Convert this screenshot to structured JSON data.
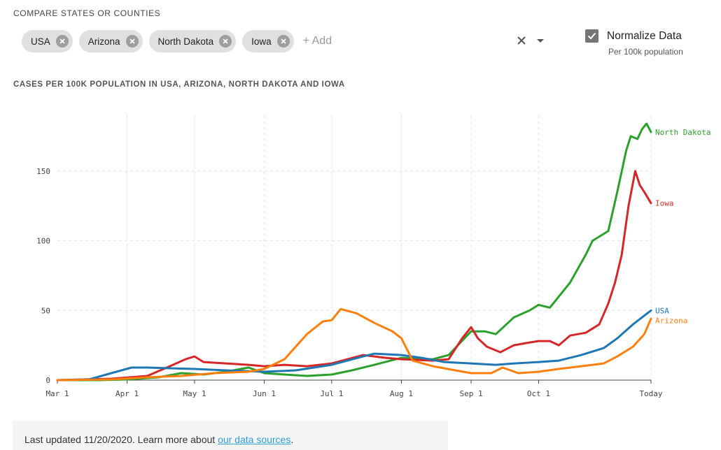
{
  "compare": {
    "label": "COMPARE STATES OR COUNTIES",
    "chips": [
      {
        "label": "USA"
      },
      {
        "label": "Arizona"
      },
      {
        "label": "North Dakota"
      },
      {
        "label": "Iowa"
      }
    ],
    "add_placeholder": "+ Add"
  },
  "normalize": {
    "label": "Normalize Data",
    "sublabel": "Per 100k population",
    "checked": true
  },
  "chart_data": {
    "type": "line",
    "title": "CASES PER 100K POPULATION IN USA, ARIZONA, NORTH DAKOTA AND IOWA",
    "xlabel": "",
    "ylabel": "",
    "x_range": [
      "2020-03-01",
      "2020-11-20"
    ],
    "ylim": [
      0,
      190
    ],
    "y_ticks": [
      0,
      50,
      100,
      150
    ],
    "x_ticks": [
      {
        "label": "Mar 1",
        "date": "2020-03-01"
      },
      {
        "label": "Apr 1",
        "date": "2020-04-01"
      },
      {
        "label": "May 1",
        "date": "2020-05-01"
      },
      {
        "label": "Jun 1",
        "date": "2020-06-01"
      },
      {
        "label": "Jul 1",
        "date": "2020-07-01"
      },
      {
        "label": "Aug 1",
        "date": "2020-08-01"
      },
      {
        "label": "Sep 1",
        "date": "2020-09-01"
      },
      {
        "label": "Oct 1",
        "date": "2020-10-01"
      },
      {
        "label": "Today",
        "date": "2020-11-20"
      }
    ],
    "grid": true,
    "series": [
      {
        "name": "North Dakota",
        "color": "#2ca02c",
        "points": [
          [
            "2020-03-01",
            0
          ],
          [
            "2020-03-20",
            0
          ],
          [
            "2020-04-01",
            0.5
          ],
          [
            "2020-04-15",
            2
          ],
          [
            "2020-04-25",
            5
          ],
          [
            "2020-05-05",
            4
          ],
          [
            "2020-05-15",
            6
          ],
          [
            "2020-05-25",
            9
          ],
          [
            "2020-06-01",
            5
          ],
          [
            "2020-06-10",
            4
          ],
          [
            "2020-06-20",
            3
          ],
          [
            "2020-07-01",
            4
          ],
          [
            "2020-07-10",
            7
          ],
          [
            "2020-07-20",
            11
          ],
          [
            "2020-08-01",
            16
          ],
          [
            "2020-08-15",
            15
          ],
          [
            "2020-08-22",
            18
          ],
          [
            "2020-09-01",
            35
          ],
          [
            "2020-09-07",
            35
          ],
          [
            "2020-09-12",
            33
          ],
          [
            "2020-09-20",
            45
          ],
          [
            "2020-09-27",
            50
          ],
          [
            "2020-10-01",
            54
          ],
          [
            "2020-10-06",
            52
          ],
          [
            "2020-10-15",
            70
          ],
          [
            "2020-10-22",
            90
          ],
          [
            "2020-10-25",
            100
          ],
          [
            "2020-11-01",
            107
          ],
          [
            "2020-11-05",
            135
          ],
          [
            "2020-11-09",
            165
          ],
          [
            "2020-11-11",
            175
          ],
          [
            "2020-11-14",
            173
          ],
          [
            "2020-11-16",
            180
          ],
          [
            "2020-11-18",
            184
          ],
          [
            "2020-11-20",
            178
          ]
        ]
      },
      {
        "name": "Iowa",
        "color": "#d62728",
        "points": [
          [
            "2020-03-01",
            0
          ],
          [
            "2020-03-25",
            1
          ],
          [
            "2020-04-10",
            3
          ],
          [
            "2020-04-20",
            10
          ],
          [
            "2020-04-27",
            15
          ],
          [
            "2020-05-01",
            17
          ],
          [
            "2020-05-05",
            13
          ],
          [
            "2020-05-15",
            12
          ],
          [
            "2020-05-25",
            11
          ],
          [
            "2020-06-01",
            10
          ],
          [
            "2020-06-10",
            11
          ],
          [
            "2020-06-20",
            10
          ],
          [
            "2020-07-01",
            12
          ],
          [
            "2020-07-15",
            18
          ],
          [
            "2020-07-25",
            16
          ],
          [
            "2020-08-01",
            15
          ],
          [
            "2020-08-15",
            14
          ],
          [
            "2020-08-22",
            15
          ],
          [
            "2020-08-28",
            30
          ],
          [
            "2020-09-01",
            38
          ],
          [
            "2020-09-04",
            30
          ],
          [
            "2020-09-08",
            24
          ],
          [
            "2020-09-14",
            20
          ],
          [
            "2020-09-20",
            25
          ],
          [
            "2020-09-27",
            27
          ],
          [
            "2020-10-01",
            28
          ],
          [
            "2020-10-06",
            28
          ],
          [
            "2020-10-10",
            25
          ],
          [
            "2020-10-15",
            32
          ],
          [
            "2020-10-22",
            34
          ],
          [
            "2020-10-28",
            40
          ],
          [
            "2020-11-01",
            55
          ],
          [
            "2020-11-04",
            70
          ],
          [
            "2020-11-07",
            90
          ],
          [
            "2020-11-10",
            125
          ],
          [
            "2020-11-13",
            150
          ],
          [
            "2020-11-15",
            140
          ],
          [
            "2020-11-17",
            135
          ],
          [
            "2020-11-20",
            127
          ]
        ]
      },
      {
        "name": "USA",
        "color": "#1f77b4",
        "points": [
          [
            "2020-03-01",
            0
          ],
          [
            "2020-03-15",
            0.5
          ],
          [
            "2020-03-25",
            5
          ],
          [
            "2020-04-03",
            9
          ],
          [
            "2020-04-10",
            9
          ],
          [
            "2020-04-20",
            8.5
          ],
          [
            "2020-05-01",
            8
          ],
          [
            "2020-05-15",
            7
          ],
          [
            "2020-06-01",
            6
          ],
          [
            "2020-06-15",
            7
          ],
          [
            "2020-07-01",
            11
          ],
          [
            "2020-07-15",
            17
          ],
          [
            "2020-07-20",
            19
          ],
          [
            "2020-08-01",
            18
          ],
          [
            "2020-08-10",
            16
          ],
          [
            "2020-08-20",
            13
          ],
          [
            "2020-09-01",
            12
          ],
          [
            "2020-09-12",
            11
          ],
          [
            "2020-09-20",
            12
          ],
          [
            "2020-10-01",
            13
          ],
          [
            "2020-10-10",
            14
          ],
          [
            "2020-10-20",
            18
          ],
          [
            "2020-10-30",
            23
          ],
          [
            "2020-11-05",
            30
          ],
          [
            "2020-11-12",
            40
          ],
          [
            "2020-11-20",
            50
          ]
        ]
      },
      {
        "name": "Arizona",
        "color": "#ff7f0e",
        "points": [
          [
            "2020-03-01",
            0
          ],
          [
            "2020-03-25",
            0.5
          ],
          [
            "2020-04-10",
            2
          ],
          [
            "2020-04-25",
            3
          ],
          [
            "2020-05-10",
            5
          ],
          [
            "2020-05-25",
            6
          ],
          [
            "2020-06-01",
            8
          ],
          [
            "2020-06-10",
            15
          ],
          [
            "2020-06-20",
            33
          ],
          [
            "2020-06-27",
            42
          ],
          [
            "2020-07-01",
            43
          ],
          [
            "2020-07-05",
            51
          ],
          [
            "2020-07-12",
            48
          ],
          [
            "2020-07-20",
            41
          ],
          [
            "2020-07-28",
            35
          ],
          [
            "2020-08-01",
            30
          ],
          [
            "2020-08-06",
            14
          ],
          [
            "2020-08-15",
            10
          ],
          [
            "2020-08-25",
            7
          ],
          [
            "2020-09-01",
            5
          ],
          [
            "2020-09-10",
            5
          ],
          [
            "2020-09-15",
            9
          ],
          [
            "2020-09-22",
            5
          ],
          [
            "2020-10-01",
            6
          ],
          [
            "2020-10-10",
            8
          ],
          [
            "2020-10-20",
            10
          ],
          [
            "2020-10-30",
            12
          ],
          [
            "2020-11-05",
            17
          ],
          [
            "2020-11-12",
            24
          ],
          [
            "2020-11-17",
            33
          ],
          [
            "2020-11-20",
            44
          ]
        ]
      }
    ]
  },
  "footer": {
    "text": "Last updated 11/20/2020. Learn more about ",
    "link_text": "our data sources",
    "suffix": "."
  }
}
